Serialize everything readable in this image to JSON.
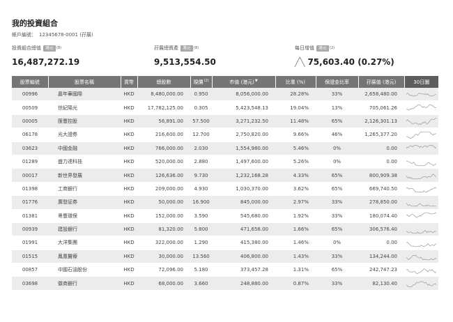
{
  "header": {
    "title": "我的投資組合",
    "account_label": "帳戶編號：",
    "account_value": "12345678-0001 (孖展)"
  },
  "summary": [
    {
      "label": "投資組合總值",
      "badge": "港元",
      "note": "(8)",
      "arrow": "",
      "value": "16,487,272.19"
    },
    {
      "label": "孖展總資產",
      "badge": "港元",
      "note": "(8)",
      "arrow": "",
      "value": "9,513,554.50"
    },
    {
      "label": "每日增值",
      "badge": "港元",
      "note": "(2)",
      "arrow": "╱╲",
      "value": "75,603.40 (0.27%)"
    }
  ],
  "table": {
    "columns": [
      {
        "label": "股票編號",
        "sup": ""
      },
      {
        "label": "股票名稱",
        "sup": ""
      },
      {
        "label": "貨幣",
        "sup": ""
      },
      {
        "label": "總股數",
        "sup": ""
      },
      {
        "label": "現價",
        "sup": "(2)"
      },
      {
        "label": "市值 (港元)",
        "sup": "▼"
      },
      {
        "label": "比重 (%)",
        "sup": ""
      },
      {
        "label": "保證金比率",
        "sup": ""
      },
      {
        "label": "孖展值 (港元)",
        "sup": ""
      },
      {
        "label": "30日圖",
        "sup": ""
      }
    ],
    "rows": [
      {
        "code": "00996",
        "name": "嘉年華國際",
        "cur": "HKD",
        "qty": "8,480,000.00",
        "price": "0.950",
        "mv": "8,056,000.00",
        "weight": "28.28%",
        "ratio": "33%",
        "margin": "2,658,480.00"
      },
      {
        "code": "00509",
        "name": "世紀陽光",
        "cur": "HKD",
        "qty": "17,782,125.00",
        "price": "0.305",
        "mv": "5,423,548.13",
        "weight": "19.04%",
        "ratio": "13%",
        "margin": "705,061.26"
      },
      {
        "code": "00005",
        "name": "匯豐控股",
        "cur": "HKD",
        "qty": "56,891.00",
        "price": "57.500",
        "mv": "3,271,232.50",
        "weight": "11.48%",
        "ratio": "65%",
        "margin": "2,126,301.13"
      },
      {
        "code": "06178",
        "name": "光大證券",
        "cur": "HKD",
        "qty": "216,600.00",
        "price": "12.700",
        "mv": "2,750,820.00",
        "weight": "9.66%",
        "ratio": "46%",
        "margin": "1,265,377.20"
      },
      {
        "code": "03623",
        "name": "中國金融",
        "cur": "HKD",
        "qty": "766,000.00",
        "price": "2.030",
        "mv": "1,554,980.00",
        "weight": "5.46%",
        "ratio": "0%",
        "margin": "0.00"
      },
      {
        "code": "01289",
        "name": "盛力達科技",
        "cur": "HKD",
        "qty": "520,000.00",
        "price": "2.880",
        "mv": "1,497,600.00",
        "weight": "5.26%",
        "ratio": "0%",
        "margin": "0.00"
      },
      {
        "code": "00017",
        "name": "新世界發展",
        "cur": "HKD",
        "qty": "126,636.00",
        "price": "9.730",
        "mv": "1,232,168.28",
        "weight": "4.33%",
        "ratio": "65%",
        "margin": "800,909.38"
      },
      {
        "code": "01398",
        "name": "工商銀行",
        "cur": "HKD",
        "qty": "209,000.00",
        "price": "4.930",
        "mv": "1,030,370.00",
        "weight": "3.62%",
        "ratio": "65%",
        "margin": "669,740.50"
      },
      {
        "code": "01776",
        "name": "廣發証券",
        "cur": "HKD",
        "qty": "50,000.00",
        "price": "16.900",
        "mv": "845,000.00",
        "weight": "2.97%",
        "ratio": "33%",
        "margin": "278,850.00"
      },
      {
        "code": "01381",
        "name": "粵豐環保",
        "cur": "HKD",
        "qty": "152,000.00",
        "price": "3.590",
        "mv": "545,680.00",
        "weight": "1.92%",
        "ratio": "33%",
        "margin": "180,074.40"
      },
      {
        "code": "00939",
        "name": "建設銀行",
        "cur": "HKD",
        "qty": "81,320.00",
        "price": "5.800",
        "mv": "471,656.00",
        "weight": "1.66%",
        "ratio": "65%",
        "margin": "306,576.40"
      },
      {
        "code": "01991",
        "name": "大洋集團",
        "cur": "HKD",
        "qty": "322,000.00",
        "price": "1.290",
        "mv": "415,380.00",
        "weight": "1.46%",
        "ratio": "0%",
        "margin": "0.00"
      },
      {
        "code": "01515",
        "name": "鳳凰醫療",
        "cur": "HKD",
        "qty": "30,000.00",
        "price": "13.560",
        "mv": "406,800.00",
        "weight": "1.43%",
        "ratio": "33%",
        "margin": "134,244.00"
      },
      {
        "code": "00857",
        "name": "中國石油股份",
        "cur": "HKD",
        "qty": "72,096.00",
        "price": "5.180",
        "mv": "373,457.28",
        "weight": "1.31%",
        "ratio": "65%",
        "margin": "242,747.23"
      },
      {
        "code": "03698",
        "name": "徽商銀行",
        "cur": "HKD",
        "qty": "68,000.00",
        "price": "3.660",
        "mv": "248,880.00",
        "weight": "0.87%",
        "ratio": "33%",
        "margin": "82,130.40"
      }
    ]
  }
}
